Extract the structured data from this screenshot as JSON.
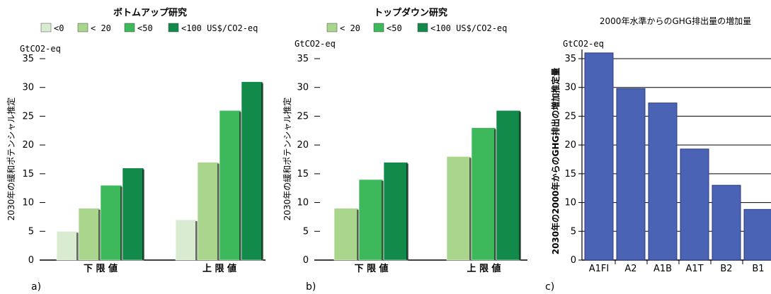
{
  "chart_data": [
    {
      "type": "bar",
      "title": "ボトムアップ研究",
      "panel_label": "a)",
      "unit": "GtCO2-eq",
      "ylabel": "2030年の緩和ポテンシャル推定",
      "ylim": [
        0,
        35
      ],
      "yticks": [
        0,
        5,
        10,
        15,
        20,
        25,
        30,
        35
      ],
      "categories": [
        "下 限 値",
        "上 限 値"
      ],
      "series": [
        {
          "name": "<0",
          "values": [
            5,
            7
          ]
        },
        {
          "name": "< 20",
          "values": [
            9,
            17
          ]
        },
        {
          "name": "<50",
          "values": [
            13,
            26
          ]
        },
        {
          "name": "<100 US$/CO2-eq",
          "values": [
            16,
            31
          ]
        }
      ]
    },
    {
      "type": "bar",
      "title": "トップダウン研究",
      "panel_label": "b)",
      "unit": "GtCO2-eq",
      "ylabel": "2030年の緩和ポテンシャル推定",
      "ylim": [
        0,
        35
      ],
      "yticks": [
        0,
        5,
        10,
        15,
        20,
        25,
        30,
        35
      ],
      "categories": [
        "下 限 値",
        "上 限 値"
      ],
      "series": [
        {
          "name": "< 20",
          "values": [
            9,
            18
          ]
        },
        {
          "name": "<50",
          "values": [
            14,
            23
          ]
        },
        {
          "name": "<100 US$/CO2-eq",
          "values": [
            17,
            26
          ]
        }
      ]
    },
    {
      "type": "bar",
      "title": "2000年水準からのGHG排出量の増加量",
      "panel_label": "c)",
      "unit": "GtCO2-eq",
      "ylabel": "2030年の2000年からのGHG排出の増加推定量",
      "ylim": [
        0,
        35
      ],
      "yticks": [
        0,
        5,
        10,
        15,
        20,
        25,
        30,
        35
      ],
      "grid": true,
      "categories": [
        "A1FI",
        "A2",
        "A1B",
        "A1T",
        "B2",
        "B1"
      ],
      "values": [
        36,
        29.8,
        27.3,
        19.3,
        13,
        8.8
      ]
    }
  ],
  "colors": {
    "lt0": "#d9ecd2",
    "lt20": "#a9d68c",
    "lt50": "#3db85a",
    "lt100": "#118a4a",
    "sres": "#4a63b5",
    "axis": "#000000"
  }
}
